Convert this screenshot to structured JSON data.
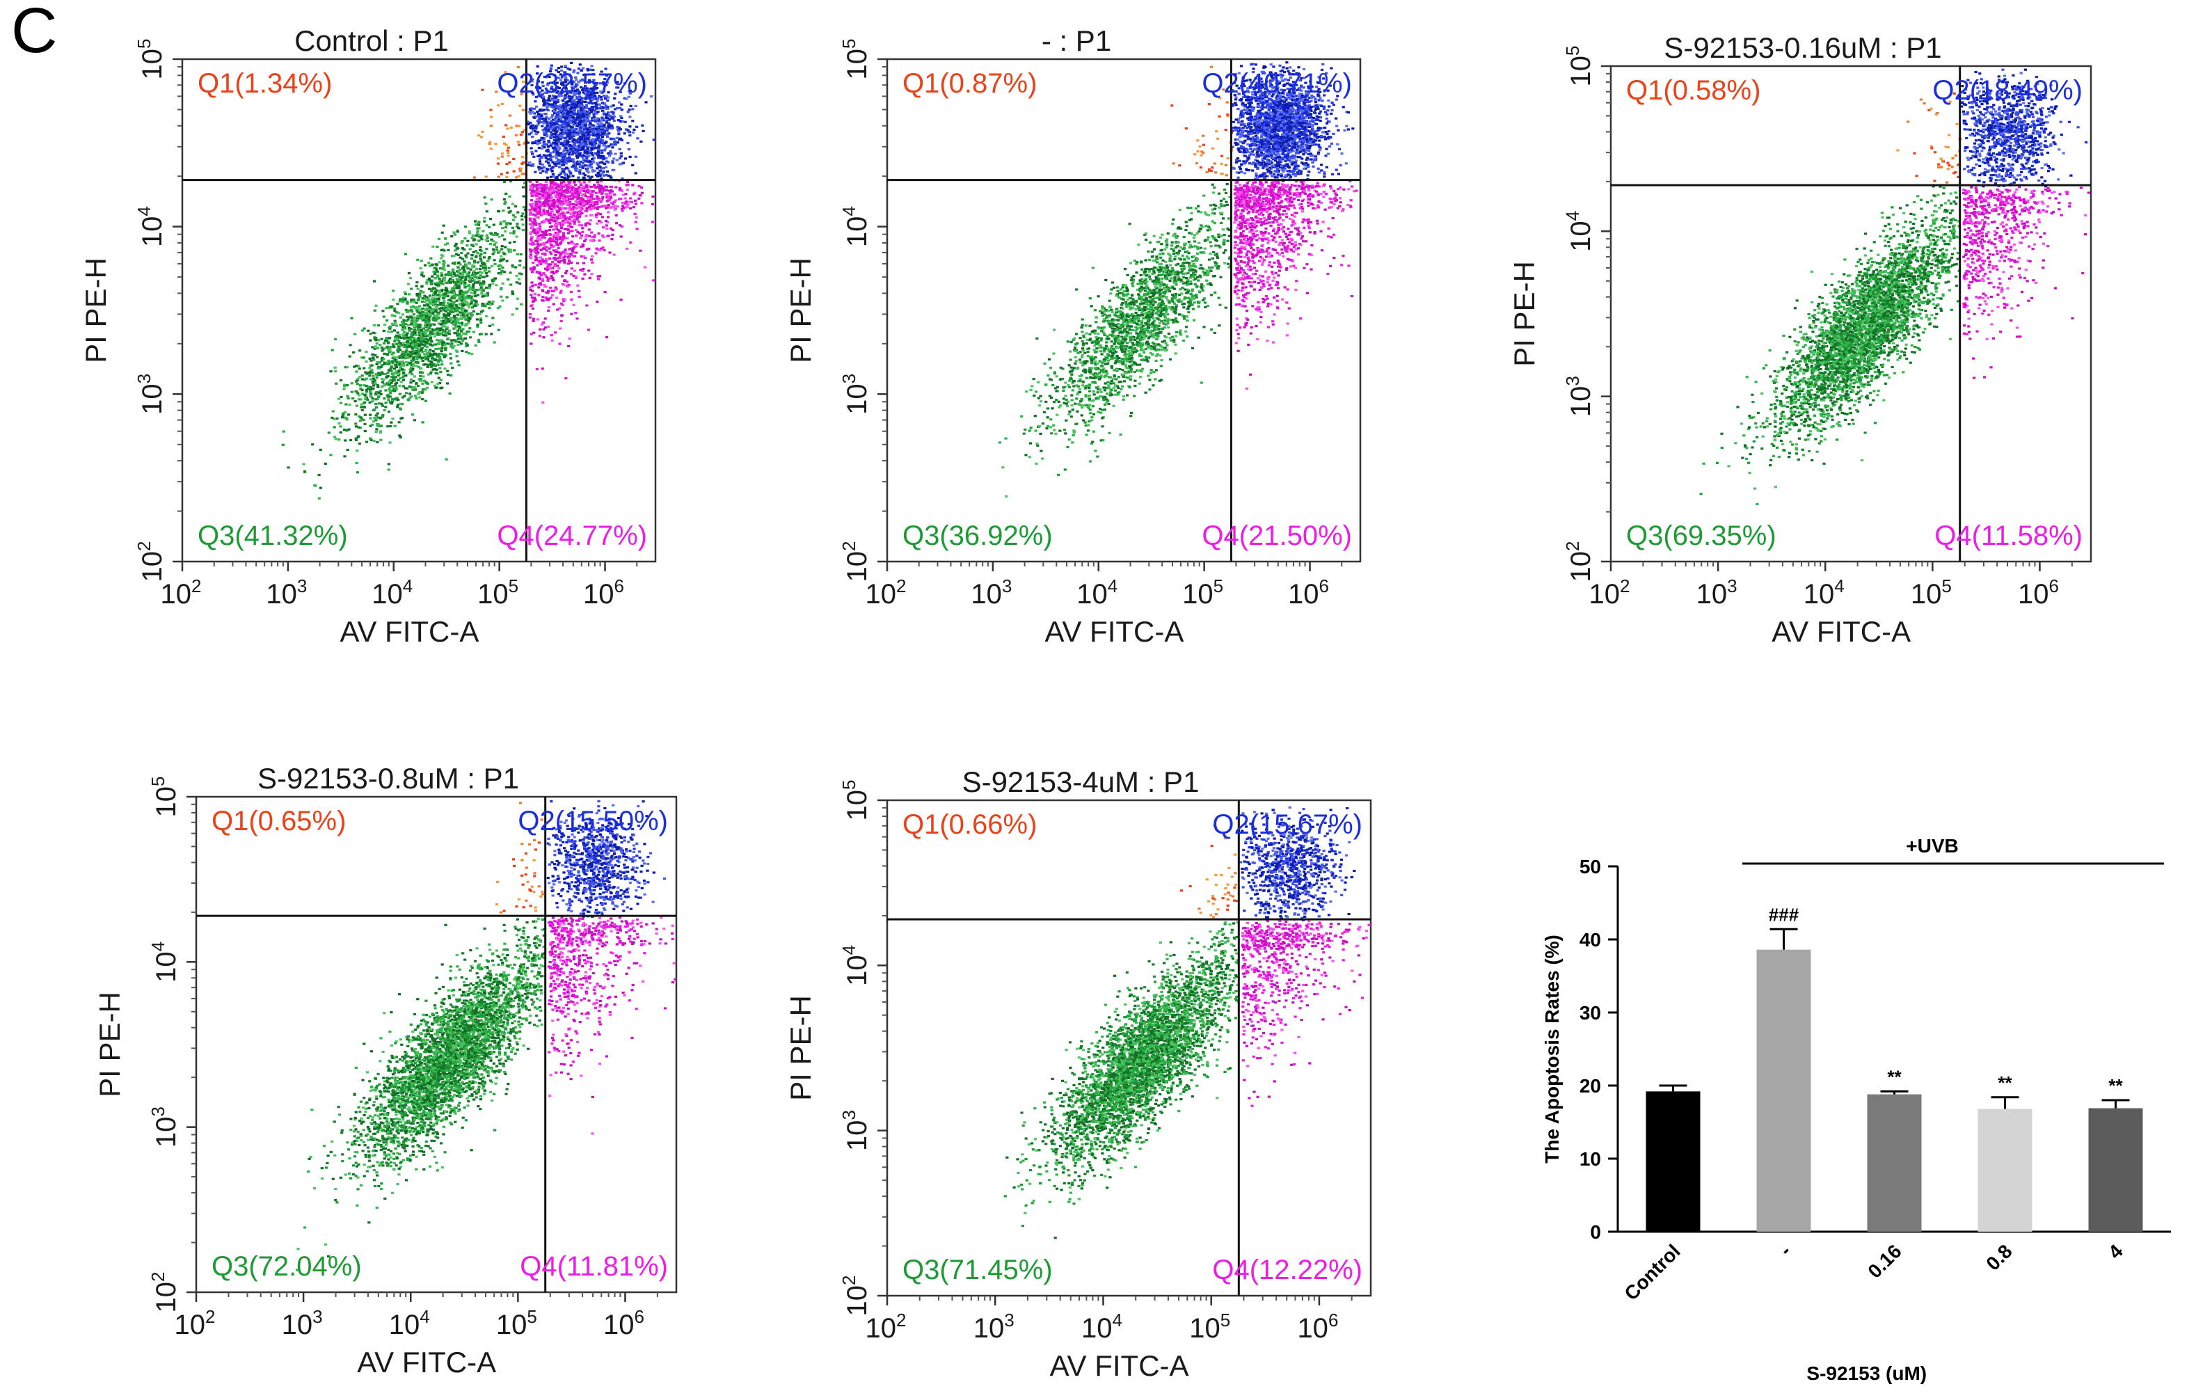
{
  "panel_label": "C",
  "colors": {
    "q1": "#e8431a",
    "q1_dots": "#f07a28",
    "q2": "#1c2fdc",
    "q3": "#1e9a35",
    "q4": "#ee1ce6",
    "gate_line": "#111111"
  },
  "chart_data": [
    {
      "type": "scatter",
      "title": "Control : P1",
      "xlabel": "AV FITC-A",
      "ylabel": "PI PE-H",
      "x_scale": "log",
      "y_scale": "log",
      "xlim": [
        100,
        3000000
      ],
      "ylim": [
        100,
        100000
      ],
      "x_ticks": [
        "10^2",
        "10^3",
        "10^4",
        "10^5",
        "10^6"
      ],
      "y_ticks": [
        "10^2",
        "10^3",
        "10^4",
        "10^5"
      ],
      "gate": {
        "x": 180000,
        "y": 19000
      },
      "quadrants": [
        {
          "name": "Q1",
          "label": "Q1(1.34%)",
          "percent": 1.34
        },
        {
          "name": "Q2",
          "label": "Q2(32.57%)",
          "percent": 32.57
        },
        {
          "name": "Q3",
          "label": "Q3(41.32%)",
          "percent": 41.32
        },
        {
          "name": "Q4",
          "label": "Q4(24.77%)",
          "percent": 24.77
        }
      ]
    },
    {
      "type": "scatter",
      "title": "- : P1",
      "xlabel": "AV FITC-A",
      "ylabel": "PI PE-H",
      "x_scale": "log",
      "y_scale": "log",
      "xlim": [
        100,
        3000000
      ],
      "ylim": [
        100,
        100000
      ],
      "x_ticks": [
        "10^2",
        "10^3",
        "10^4",
        "10^5",
        "10^6"
      ],
      "y_ticks": [
        "10^2",
        "10^3",
        "10^4",
        "10^5"
      ],
      "gate": {
        "x": 180000,
        "y": 19000
      },
      "quadrants": [
        {
          "name": "Q1",
          "label": "Q1(0.87%)",
          "percent": 0.87
        },
        {
          "name": "Q2",
          "label": "Q2(40.71%)",
          "percent": 40.71
        },
        {
          "name": "Q3",
          "label": "Q3(36.92%)",
          "percent": 36.92
        },
        {
          "name": "Q4",
          "label": "Q4(21.50%)",
          "percent": 21.5
        }
      ]
    },
    {
      "type": "scatter",
      "title": "S-92153-0.16uM : P1",
      "xlabel": "AV FITC-A",
      "ylabel": "PI PE-H",
      "x_scale": "log",
      "y_scale": "log",
      "xlim": [
        100,
        3000000
      ],
      "ylim": [
        100,
        100000
      ],
      "x_ticks": [
        "10^2",
        "10^3",
        "10^4",
        "10^5",
        "10^6"
      ],
      "y_ticks": [
        "10^2",
        "10^3",
        "10^4",
        "10^5"
      ],
      "gate": {
        "x": 180000,
        "y": 19000
      },
      "quadrants": [
        {
          "name": "Q1",
          "label": "Q1(0.58%)",
          "percent": 0.58
        },
        {
          "name": "Q2",
          "label": "Q2(18.49%)",
          "percent": 18.49
        },
        {
          "name": "Q3",
          "label": "Q3(69.35%)",
          "percent": 69.35
        },
        {
          "name": "Q4",
          "label": "Q4(11.58%)",
          "percent": 11.58
        }
      ]
    },
    {
      "type": "scatter",
      "title": "S-92153-0.8uM : P1",
      "xlabel": "AV FITC-A",
      "ylabel": "PI PE-H",
      "x_scale": "log",
      "y_scale": "log",
      "xlim": [
        100,
        3000000
      ],
      "ylim": [
        100,
        100000
      ],
      "x_ticks": [
        "10^2",
        "10^3",
        "10^4",
        "10^5",
        "10^6"
      ],
      "y_ticks": [
        "10^2",
        "10^3",
        "10^4",
        "10^5"
      ],
      "gate": {
        "x": 180000,
        "y": 19000
      },
      "quadrants": [
        {
          "name": "Q1",
          "label": "Q1(0.65%)",
          "percent": 0.65
        },
        {
          "name": "Q2",
          "label": "Q2(15.50%)",
          "percent": 15.5
        },
        {
          "name": "Q3",
          "label": "Q3(72.04%)",
          "percent": 72.04
        },
        {
          "name": "Q4",
          "label": "Q4(11.81%)",
          "percent": 11.81
        }
      ]
    },
    {
      "type": "scatter",
      "title": "S-92153-4uM : P1",
      "xlabel": "AV FITC-A",
      "ylabel": "PI PE-H",
      "x_scale": "log",
      "y_scale": "log",
      "xlim": [
        100,
        3000000
      ],
      "ylim": [
        100,
        100000
      ],
      "x_ticks": [
        "10^2",
        "10^3",
        "10^4",
        "10^5",
        "10^6"
      ],
      "y_ticks": [
        "10^2",
        "10^3",
        "10^4",
        "10^5"
      ],
      "gate": {
        "x": 180000,
        "y": 19000
      },
      "quadrants": [
        {
          "name": "Q1",
          "label": "Q1(0.66%)",
          "percent": 0.66
        },
        {
          "name": "Q2",
          "label": "Q2(15.67%)",
          "percent": 15.67
        },
        {
          "name": "Q3",
          "label": "Q3(71.45%)",
          "percent": 71.45
        },
        {
          "name": "Q4",
          "label": "Q4(12.22%)",
          "percent": 12.22
        }
      ]
    },
    {
      "type": "bar",
      "title": "",
      "xlabel": "S-92153 (uM)",
      "ylabel": "The Apoptosis Rates (%)",
      "ylim": [
        0,
        50
      ],
      "y_ticks": [
        0,
        10,
        20,
        30,
        40,
        50
      ],
      "categories": [
        "Control",
        "-",
        "0.16",
        "0.8",
        "4"
      ],
      "values": [
        19.2,
        38.6,
        18.8,
        16.8,
        16.9
      ],
      "errors": [
        0.8,
        2.8,
        0.4,
        1.6,
        1.1
      ],
      "bar_colors": [
        "#000000",
        "#a6a6a6",
        "#7a7a7a",
        "#d4d4d4",
        "#5c5c5c"
      ],
      "annotations": [
        "",
        "###",
        "**",
        "**",
        "**"
      ],
      "group_label": "+UVB",
      "grid": false
    }
  ]
}
